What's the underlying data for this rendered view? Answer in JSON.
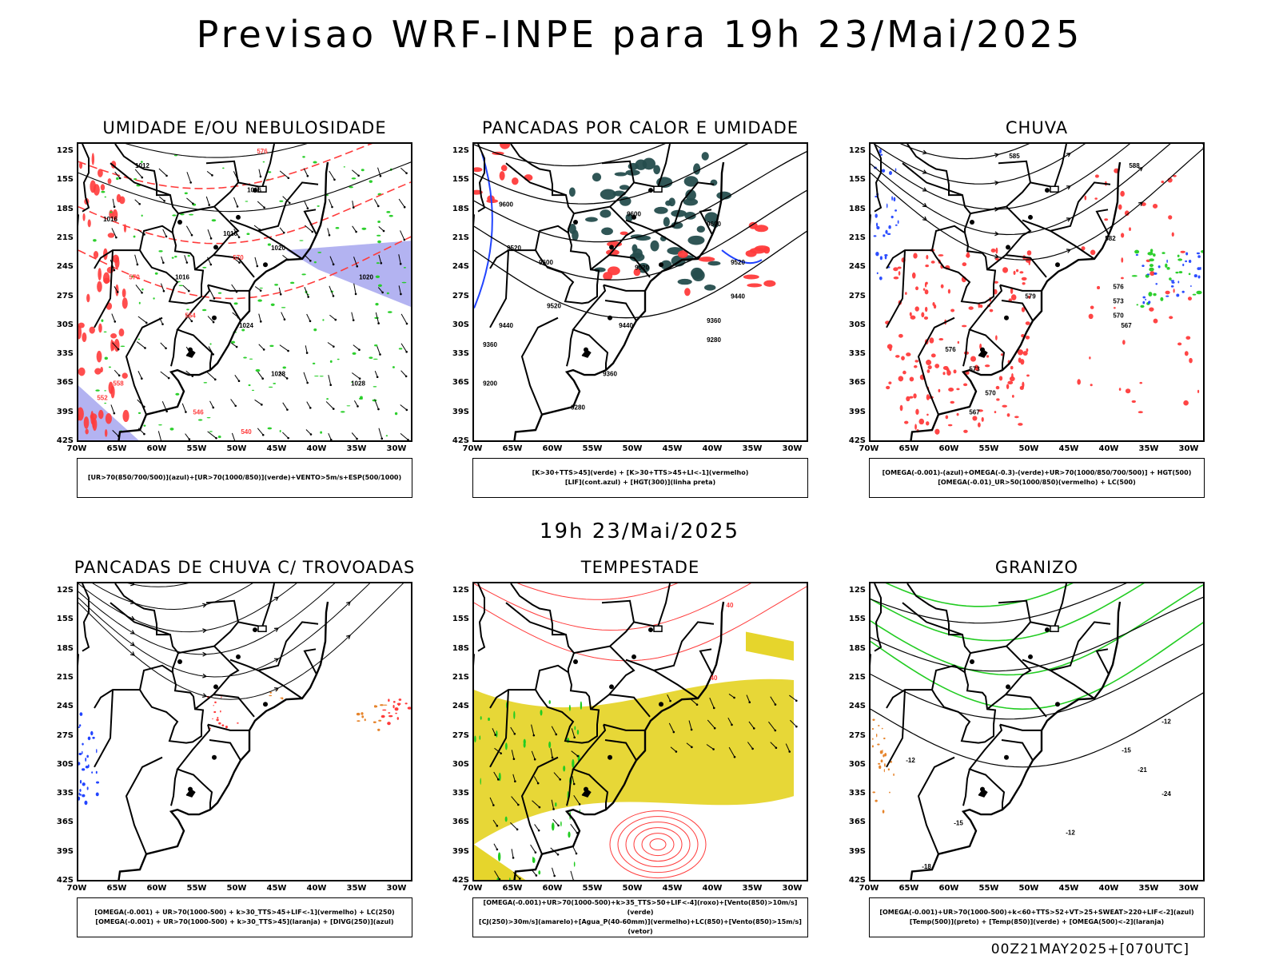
{
  "header": {
    "title": "Previsao WRF-INPE  para 19h 23/Mai/2025",
    "mid_time": "19h 23/Mai/2025",
    "footer": "00Z21MAY2025+[070UTC]"
  },
  "axes": {
    "lat_labels": [
      "12S",
      "15S",
      "18S",
      "21S",
      "24S",
      "27S",
      "30S",
      "33S",
      "36S",
      "39S",
      "42S"
    ],
    "lon_labels": [
      "70W",
      "65W",
      "60W",
      "55W",
      "50W",
      "45W",
      "40W",
      "35W",
      "30W"
    ],
    "lat_range": [
      -42,
      -11
    ],
    "lon_range": [
      -70,
      -28
    ]
  },
  "colors": {
    "black": "#000000",
    "red": "#ff3b3b",
    "green": "#22cc22",
    "blue": "#2244ff",
    "lavender": "#a6a6ee",
    "darkteal": "#254d4d",
    "yellow": "#e6d52c",
    "orange": "#e6842c"
  },
  "panels": [
    {
      "title": "UMIDADE E/OU NEBULOSIDADE",
      "legend": [
        "[UR>70(850/700/500)](azul)+[UR>70(1000/850)](verde)+VENTO>5m/s+ESP(500/1000)"
      ],
      "contour_labels": [
        {
          "text": "1012",
          "lon": -62,
          "lat": -13.5
        },
        {
          "text": "1016",
          "lon": -48,
          "lat": -16
        },
        {
          "text": "1016",
          "lon": -51,
          "lat": -20.5
        },
        {
          "text": "1020",
          "lon": -45,
          "lat": -22
        },
        {
          "text": "1016",
          "lon": -57,
          "lat": -25
        },
        {
          "text": "1024",
          "lon": -49,
          "lat": -30
        },
        {
          "text": "1028",
          "lon": -45,
          "lat": -35
        },
        {
          "text": "1028",
          "lon": -35,
          "lat": -36
        },
        {
          "text": "1020",
          "lon": -34,
          "lat": -25
        },
        {
          "text": "1016",
          "lon": -66,
          "lat": -19
        }
      ],
      "red_labels": [
        {
          "text": "570",
          "lon": -50,
          "lat": -23
        },
        {
          "text": "564",
          "lon": -56,
          "lat": -29
        },
        {
          "text": "558",
          "lon": -65,
          "lat": -36
        },
        {
          "text": "546",
          "lon": -55,
          "lat": -39
        },
        {
          "text": "540",
          "lon": -49,
          "lat": -41
        },
        {
          "text": "552",
          "lon": -67,
          "lat": -37.5
        },
        {
          "text": "570",
          "lon": -63,
          "lat": -25
        },
        {
          "text": "576",
          "lon": -47,
          "lat": -12
        }
      ]
    },
    {
      "title": "PANCADAS POR CALOR E UMIDADE",
      "legend": [
        "[K>30+TTS>45](verde) + [K>30+TTS>45+LI<-1](vermelho)",
        "[LIF](cont.azul) + [HGT(300)](linha preta)"
      ],
      "contour_labels": [
        {
          "text": "9600",
          "lon": -50,
          "lat": -18.5
        },
        {
          "text": "9600",
          "lon": -66,
          "lat": -17.5
        },
        {
          "text": "9600",
          "lon": -40,
          "lat": -19.5
        },
        {
          "text": "9600",
          "lon": -61,
          "lat": -23.5
        },
        {
          "text": "9520",
          "lon": -65,
          "lat": -22
        },
        {
          "text": "9520",
          "lon": -49,
          "lat": -24
        },
        {
          "text": "9520",
          "lon": -37,
          "lat": -23.5
        },
        {
          "text": "9520",
          "lon": -60,
          "lat": -28
        },
        {
          "text": "9440",
          "lon": -66,
          "lat": -30
        },
        {
          "text": "9440",
          "lon": -51,
          "lat": -30
        },
        {
          "text": "9440",
          "lon": -37,
          "lat": -27
        },
        {
          "text": "9360",
          "lon": -68,
          "lat": -32
        },
        {
          "text": "9360",
          "lon": -53,
          "lat": -35
        },
        {
          "text": "9360",
          "lon": -40,
          "lat": -29.5
        },
        {
          "text": "9280",
          "lon": -40,
          "lat": -31.5
        },
        {
          "text": "9280",
          "lon": -57,
          "lat": -38.5
        },
        {
          "text": "9200",
          "lon": -68,
          "lat": -36
        }
      ]
    },
    {
      "title": "CHUVA",
      "legend": [
        "[OMEGA(-0.001)-(azul)+OMEGA(-0.3)-(verde)+UR>70(1000/850/700/500)] + HGT(500)",
        "[OMEGA(-0.01)_UR>50(1000/850)(vermelho) + LC(500)"
      ],
      "contour_labels": [
        {
          "text": "585",
          "lon": -52,
          "lat": -12.5
        },
        {
          "text": "588",
          "lon": -37,
          "lat": -13.5
        },
        {
          "text": "582",
          "lon": -40,
          "lat": -21
        },
        {
          "text": "579",
          "lon": -50,
          "lat": -27
        },
        {
          "text": "576",
          "lon": -39,
          "lat": -26
        },
        {
          "text": "573",
          "lon": -39,
          "lat": -27.5
        },
        {
          "text": "570",
          "lon": -39,
          "lat": -29
        },
        {
          "text": "567",
          "lon": -38,
          "lat": -30
        },
        {
          "text": "576",
          "lon": -60,
          "lat": -32.5
        },
        {
          "text": "573",
          "lon": -57,
          "lat": -34.5
        },
        {
          "text": "570",
          "lon": -55,
          "lat": -37
        },
        {
          "text": "567",
          "lon": -57,
          "lat": -39
        }
      ]
    },
    {
      "title": "PANCADAS DE CHUVA C/ TROVOADAS",
      "legend": [
        "[OMEGA(-0.001) + UR>70(1000-500) + k>30_TTS>45+LIF<-1](vermelho) + LC(250)",
        "[OMEGA(-0.001) + UR>70(1000-500) + k>30_TTS>45](laranja) + [DIVG(250)](azul)"
      ],
      "contour_labels": []
    },
    {
      "title": "TEMPESTADE",
      "legend": [
        "[OMEGA(-0.001)+UR>70(1000-500)+k>35_TTS>50+LIF<-4](roxo)+[Vento(850)>10m/s](verde)",
        "[CJ(250)>30m/s](amarelo)+[Agua_P(40-60mm)](vermelho)+LC(850)+[Vento(850)>15m/s](vetor)"
      ],
      "contour_labels": [
        {
          "text": "40",
          "lon": -40,
          "lat": -21
        },
        {
          "text": "40",
          "lon": -38,
          "lat": -13.5
        }
      ]
    },
    {
      "title": "GRANIZO",
      "legend": [
        "[OMEGA(-0.001)+UR>70(1000-500)+k<60+TTS>52+VT>25+SWEAT>220+LIF<-2](azul)",
        "[Temp(500)](preto) + [Temp(850)](verde) + [OMEGA(500)<-2](laranja)"
      ],
      "contour_labels": [
        {
          "text": "-12",
          "lon": -33,
          "lat": -25.5
        },
        {
          "text": "-15",
          "lon": -38,
          "lat": -28.5
        },
        {
          "text": "-21",
          "lon": -36,
          "lat": -30.5
        },
        {
          "text": "-24",
          "lon": -33,
          "lat": -33
        },
        {
          "text": "-12",
          "lon": -65,
          "lat": -29.5
        },
        {
          "text": "-15",
          "lon": -59,
          "lat": -36
        },
        {
          "text": "-18",
          "lon": -63,
          "lat": -40.5
        },
        {
          "text": "-12",
          "lon": -45,
          "lat": -37
        }
      ]
    }
  ]
}
